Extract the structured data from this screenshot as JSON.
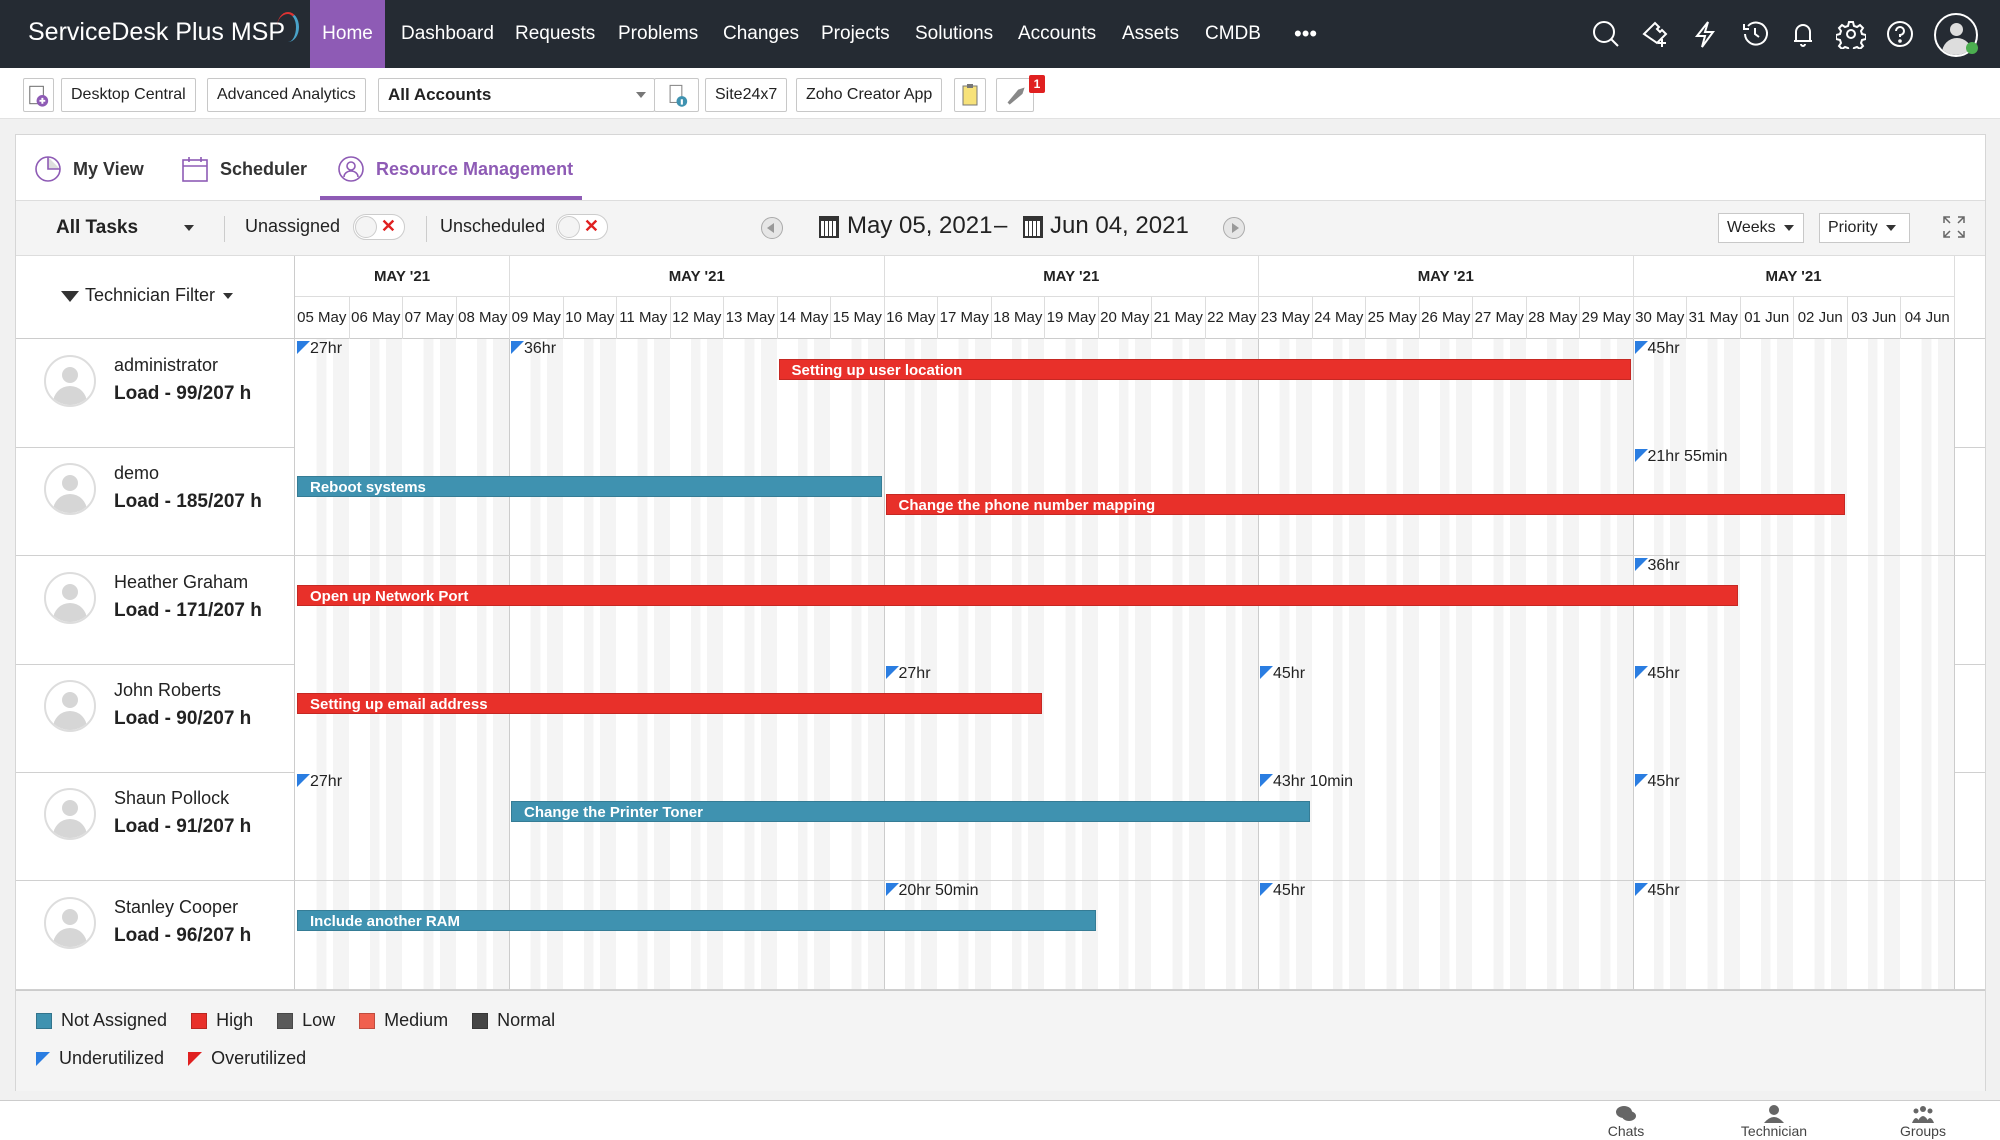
{
  "app": {
    "logo": "ServiceDesk Plus MSP"
  },
  "nav": {
    "items": [
      {
        "label": "Home",
        "active": true
      },
      {
        "label": "Dashboard"
      },
      {
        "label": "Requests"
      },
      {
        "label": "Problems"
      },
      {
        "label": "Changes"
      },
      {
        "label": "Projects"
      },
      {
        "label": "Solutions"
      },
      {
        "label": "Accounts"
      },
      {
        "label": "Assets"
      },
      {
        "label": "CMDB"
      }
    ],
    "more": "•••",
    "icons": [
      "search-icon",
      "add-ticket-icon",
      "lightning-icon",
      "history-icon",
      "bell-icon",
      "gear-icon",
      "help-icon",
      "user-avatar-icon"
    ]
  },
  "toolbar": {
    "desktop_central": "Desktop Central",
    "advanced_analytics": "Advanced Analytics",
    "accounts_select": "All Accounts",
    "site24x7": "Site24x7",
    "zoho_creator": "Zoho Creator App",
    "badge_count": "1"
  },
  "tabs": [
    {
      "label": "My View"
    },
    {
      "label": "Scheduler"
    },
    {
      "label": "Resource Management",
      "active": true
    }
  ],
  "filters": {
    "task_filter": "All Tasks",
    "unassigned": "Unassigned",
    "unassigned_on": false,
    "unscheduled": "Unscheduled",
    "unscheduled_on": false,
    "date_from": "May 05, 2021",
    "dash": "–",
    "date_to": "Jun 04, 2021",
    "view": "Weeks",
    "sort": "Priority",
    "technician_filter": "Technician Filter"
  },
  "colors": {
    "accent": "#8e5bb5",
    "high": "#e8302a",
    "not_assigned": "#3f92b0",
    "low": "#5a5a5a",
    "medium": "#f0604e",
    "normal": "#444444",
    "underutilized": "#2a7de1",
    "overutilized": "#e02020"
  },
  "timeline": {
    "weeks": [
      {
        "label": "MAY '21",
        "days": 4
      },
      {
        "label": "MAY '21",
        "days": 7
      },
      {
        "label": "MAY '21",
        "days": 7
      },
      {
        "label": "MAY '21",
        "days": 7
      },
      {
        "label": "MAY '21",
        "days": 6
      }
    ],
    "days": [
      "05 May",
      "06 May",
      "07 May",
      "08 May",
      "09 May",
      "10 May",
      "11 May",
      "12 May",
      "13 May",
      "14 May",
      "15 May",
      "16 May",
      "17 May",
      "18 May",
      "19 May",
      "20 May",
      "21 May",
      "22 May",
      "23 May",
      "24 May",
      "25 May",
      "26 May",
      "27 May",
      "28 May",
      "29 May",
      "30 May",
      "31 May",
      "01 Jun",
      "02 Jun",
      "03 Jun",
      "04 Jun"
    ]
  },
  "technicians": [
    {
      "name": "administrator",
      "load": "Load - 99/207 h",
      "markers": [
        {
          "day": "05 May",
          "label": "27hr"
        },
        {
          "day": "09 May",
          "label": "36hr"
        },
        {
          "day": "30 May",
          "label": "45hr"
        }
      ],
      "tasks": [
        {
          "title": "Setting up user location",
          "priority": "high",
          "start": "14 May",
          "end": "29 May",
          "lane": 0
        }
      ]
    },
    {
      "name": "demo",
      "load": "Load - 185/207 h",
      "markers": [
        {
          "day": "30 May",
          "label": "21hr 55min"
        }
      ],
      "tasks": [
        {
          "title": "Reboot systems",
          "priority": "not_assigned",
          "start": "05 May",
          "end": "15 May",
          "lane": 1
        },
        {
          "title": "Change the phone number mapping",
          "priority": "high",
          "start": "16 May",
          "end": "02 Jun",
          "lane": 2
        }
      ]
    },
    {
      "name": "Heather Graham",
      "load": "Load - 171/207 h",
      "markers": [
        {
          "day": "30 May",
          "label": "36hr"
        }
      ],
      "tasks": [
        {
          "title": "Open up Network Port",
          "priority": "high",
          "start": "05 May",
          "end": "31 May",
          "lane": 1
        }
      ]
    },
    {
      "name": "John Roberts",
      "load": "Load - 90/207 h",
      "markers": [
        {
          "day": "16 May",
          "label": "27hr"
        },
        {
          "day": "23 May",
          "label": "45hr"
        },
        {
          "day": "30 May",
          "label": "45hr"
        }
      ],
      "tasks": [
        {
          "title": "Setting up email address",
          "priority": "high",
          "start": "05 May",
          "end": "18 May",
          "lane": 1
        }
      ]
    },
    {
      "name": "Shaun Pollock",
      "load": "Load - 91/207 h",
      "markers": [
        {
          "day": "05 May",
          "label": "27hr"
        },
        {
          "day": "23 May",
          "label": "43hr 10min"
        },
        {
          "day": "30 May",
          "label": "45hr"
        }
      ],
      "tasks": [
        {
          "title": "Change the Printer Toner",
          "priority": "not_assigned",
          "start": "09 May",
          "end": "23 May",
          "lane": 1
        }
      ]
    },
    {
      "name": "Stanley Cooper",
      "load": "Load - 96/207 h",
      "markers": [
        {
          "day": "16 May",
          "label": "20hr 50min"
        },
        {
          "day": "23 May",
          "label": "45hr"
        },
        {
          "day": "30 May",
          "label": "45hr"
        }
      ],
      "tasks": [
        {
          "title": "Include another RAM",
          "priority": "not_assigned",
          "start": "05 May",
          "end": "19 May",
          "lane": 1
        }
      ]
    }
  ],
  "legend": {
    "priorities": [
      {
        "key": "not_assigned",
        "label": "Not Assigned"
      },
      {
        "key": "high",
        "label": "High"
      },
      {
        "key": "low",
        "label": "Low"
      },
      {
        "key": "medium",
        "label": "Medium"
      },
      {
        "key": "normal",
        "label": "Normal"
      }
    ],
    "utilization": [
      {
        "key": "underutilized",
        "label": "Underutilized"
      },
      {
        "key": "overutilized",
        "label": "Overutilized"
      }
    ]
  },
  "bottom": {
    "chats": "Chats",
    "technician": "Technician",
    "groups": "Groups"
  }
}
